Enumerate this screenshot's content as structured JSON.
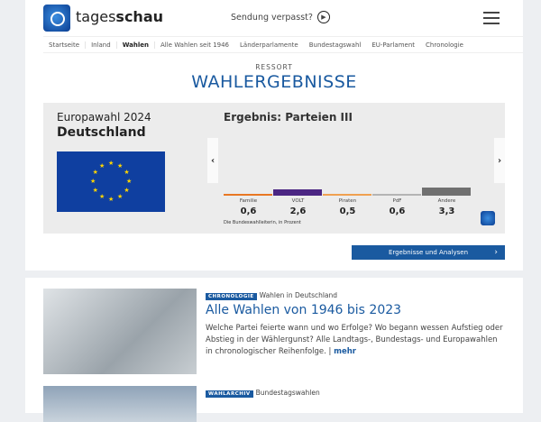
{
  "header": {
    "brand_light": "tages",
    "brand_bold": "schau",
    "missed": "Sendung verpasst?"
  },
  "nav": [
    "Startseite",
    "Inland",
    "Wahlen",
    "Alle Wahlen seit 1946",
    "Länderparlamente",
    "Bundestagswahl",
    "EU-Parlament",
    "Chronologie"
  ],
  "ressort": "RESSORT",
  "title": "WAHLERGEBNISSE",
  "election": {
    "name": "Europawahl 2024",
    "region": "Deutschland"
  },
  "chart_data": {
    "type": "bar",
    "title": "Ergebnis: Parteien III",
    "categories": [
      "Familie",
      "VOLT",
      "Piraten",
      "PdF",
      "Andere"
    ],
    "values": [
      0.6,
      2.6,
      0.5,
      0.6,
      3.3
    ],
    "colors": [
      "#e87722",
      "#4b2683",
      "#f0a050",
      "#b4b4b4",
      "#707070"
    ],
    "source": "Die Bundeswahlleiterin, in Prozent",
    "value_labels": [
      "0,6",
      "2,6",
      "0,5",
      "0,6",
      "3,3"
    ]
  },
  "results_button": "Ergebnisse und Analysen",
  "articles": [
    {
      "tag": "CHRONOLOGIE",
      "topic": "Wahlen in Deutschland",
      "title": "Alle Wahlen von 1946 bis 2023",
      "text": "Welche Partei feierte wann und wo Erfolge? Wo begann wessen Aufstieg oder Abstieg in der Wählergunst? Alle Landtags-, Bundestags- und Europawahlen in chronologischer Reihenfolge.",
      "more": "mehr"
    },
    {
      "tag": "WAHLARCHIV",
      "topic": "Bundestagswahlen"
    }
  ]
}
